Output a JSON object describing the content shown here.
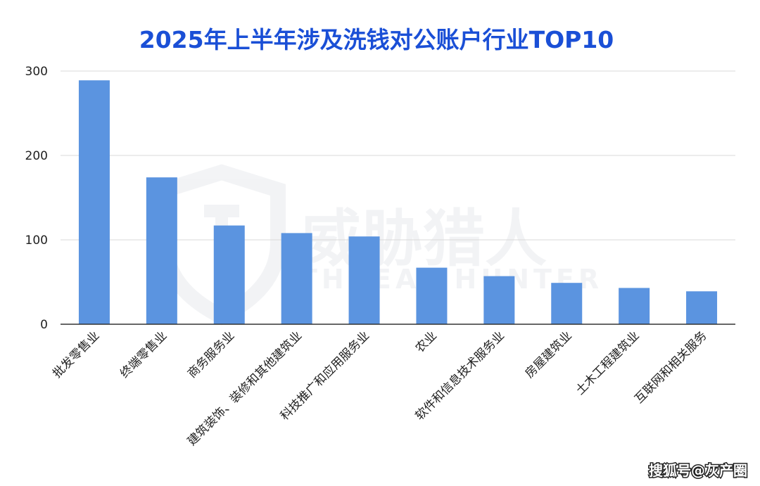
{
  "chart_data": {
    "type": "bar",
    "title": "2025年上半年涉及洗钱对公账户行业TOP10",
    "categories": [
      "批发零售业",
      "终端零售业",
      "商务服务业",
      "建筑装饰、装修和其他建筑业",
      "科技推广和应用服务业",
      "农业",
      "软件和信息技术服务业",
      "房屋建筑业",
      "土木工程建筑业",
      "互联网和相关服务"
    ],
    "values": [
      289,
      174,
      117,
      108,
      104,
      67,
      57,
      49,
      43,
      39
    ],
    "ylim": [
      0,
      300
    ],
    "yticks": [
      "0",
      "100",
      "200",
      "300"
    ],
    "grid": true,
    "legend": "none",
    "bar_color": "#5b94e0",
    "title_color": "#1a4fd6",
    "watermark": {
      "cn": "威胁猎人",
      "en": "THREAT HUNTER"
    },
    "credit": "搜狐号@灰产圈"
  }
}
